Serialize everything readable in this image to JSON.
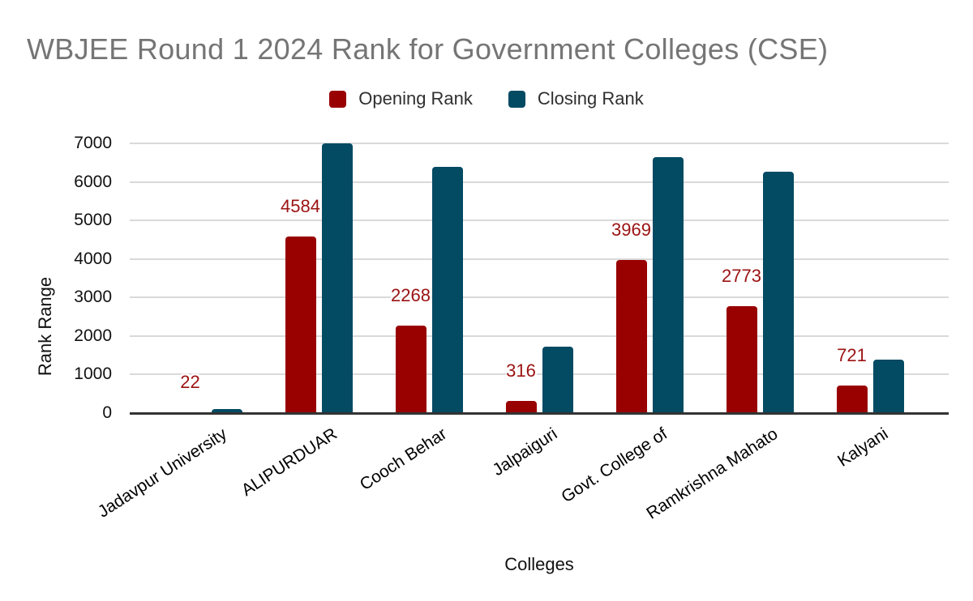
{
  "title": {
    "text": "WBJEE Round 1 2024 Rank for Government Colleges (CSE)",
    "color": "#757575"
  },
  "legend": {
    "position": "top",
    "items": [
      {
        "label": "Opening Rank",
        "color": "#990000"
      },
      {
        "label": "Closing Rank",
        "color": "#034a63"
      }
    ]
  },
  "chart_data": {
    "type": "bar",
    "title": "WBJEE Round 1 2024 Rank for Government Colleges (CSE)",
    "xlabel": "Colleges",
    "ylabel": "Rank Range",
    "categories": [
      "Jadavpur University",
      "ALIPURDUAR",
      "Cooch Behar",
      "Jalpaiguri",
      "Govt. College of",
      "Ramkrishna Mahato",
      "Kalyani"
    ],
    "series": [
      {
        "name": "Opening Rank",
        "color": "#990000",
        "values": [
          22,
          4584,
          2268,
          316,
          3969,
          2773,
          721
        ],
        "data_labels_shown": true,
        "data_labels": [
          "22",
          "4584",
          "2268",
          "316",
          "3969",
          "2773",
          "721"
        ],
        "label_color": "#9b1212"
      },
      {
        "name": "Closing Rank",
        "color": "#034a63",
        "values": [
          100,
          7000,
          6400,
          1720,
          6650,
          6270,
          1390
        ],
        "data_labels_shown": false,
        "note_values_estimated_from_gridlines": true
      }
    ],
    "ylim": [
      0,
      7000
    ],
    "ytick_step": 1000,
    "yticks": [
      "0",
      "1000",
      "2000",
      "3000",
      "4000",
      "5000",
      "6000",
      "7000"
    ],
    "grid": true,
    "gridline_color": "#d9d9d9",
    "axis_line_color": "#333333",
    "legend_position": "top",
    "x_label_rotation_deg": -33,
    "background": "#ffffff"
  }
}
